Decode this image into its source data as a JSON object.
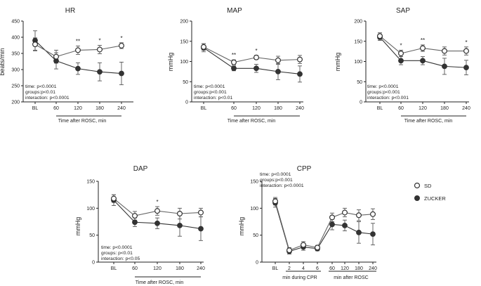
{
  "legend": [
    {
      "name": "SD",
      "style": "open"
    },
    {
      "name": "ZUCKER",
      "style": "filled"
    }
  ],
  "chart_data": [
    {
      "id": "hr",
      "type": "line",
      "title": "HR",
      "ylabel": "beats/min",
      "xlabel": "Time after ROSC, min",
      "categories": [
        "BL",
        "60",
        "120",
        "180",
        "240"
      ],
      "yticks": [
        "200",
        "250",
        "300",
        "350",
        "400",
        "450"
      ],
      "ylim": [
        200,
        450
      ],
      "series": [
        {
          "name": "SD",
          "values": [
            378,
            340,
            360,
            362,
            374
          ],
          "err": [
            20,
            20,
            13,
            13,
            9
          ]
        },
        {
          "name": "ZUCKER",
          "values": [
            390,
            327,
            303,
            293,
            288
          ],
          "err": [
            30,
            25,
            18,
            28,
            35
          ]
        }
      ],
      "significance": [
        "",
        "",
        "**",
        "*",
        "*"
      ],
      "stats": [
        "time: p<0.0001",
        "groups:p<0.01",
        "interaction: p<0.0001"
      ]
    },
    {
      "id": "map",
      "type": "line",
      "title": "MAP",
      "ylabel": "mmHg",
      "xlabel": "Time after ROSC, min",
      "categories": [
        "BL",
        "60",
        "120",
        "180",
        "240"
      ],
      "yticks": [
        "0",
        "50",
        "100",
        "150",
        "200"
      ],
      "ylim": [
        0,
        200
      ],
      "series": [
        {
          "name": "SD",
          "values": [
            136,
            98,
            110,
            103,
            105
          ],
          "err": [
            8,
            6,
            5,
            10,
            10
          ]
        },
        {
          "name": "ZUCKER",
          "values": [
            134,
            83,
            83,
            75,
            69
          ],
          "err": [
            10,
            6,
            10,
            20,
            20
          ]
        }
      ],
      "significance": [
        "",
        "**",
        "*",
        "",
        ""
      ],
      "stats": [
        "time: p<0.0001",
        "groups:p<0.001",
        "interaction: p<0.01"
      ]
    },
    {
      "id": "sap",
      "type": "line",
      "title": "SAP",
      "ylabel": "mmHg",
      "xlabel": "Time after ROSC, min",
      "categories": [
        "BL",
        "60",
        "120",
        "180",
        "240"
      ],
      "yticks": [
        "0",
        "50",
        "100",
        "150",
        "200"
      ],
      "ylim": [
        0,
        200
      ],
      "series": [
        {
          "name": "SD",
          "values": [
            163,
            120,
            133,
            126,
            126
          ],
          "err": [
            8,
            8,
            8,
            10,
            10
          ]
        },
        {
          "name": "ZUCKER",
          "values": [
            160,
            102,
            102,
            88,
            85
          ],
          "err": [
            8,
            10,
            10,
            20,
            18
          ]
        }
      ],
      "significance": [
        "",
        "*",
        "**",
        "",
        "*"
      ],
      "stats": [
        "time: p<0.0001",
        "groups:p<0.001",
        "interaction: p<0.001"
      ]
    },
    {
      "id": "dap",
      "type": "line",
      "title": "DAP",
      "ylabel": "mmHg",
      "xlabel": "Time after ROSC, min",
      "categories": [
        "BL",
        "60",
        "120",
        "180",
        "240"
      ],
      "yticks": [
        "0",
        "50",
        "100",
        "150"
      ],
      "ylim": [
        0,
        150
      ],
      "series": [
        {
          "name": "SD",
          "values": [
            118,
            86,
            95,
            90,
            92
          ],
          "err": [
            7,
            8,
            8,
            10,
            8
          ]
        },
        {
          "name": "ZUCKER",
          "values": [
            115,
            74,
            72,
            68,
            62
          ],
          "err": [
            10,
            8,
            10,
            20,
            22
          ]
        }
      ],
      "significance": [
        "",
        "",
        "*",
        "",
        ""
      ],
      "stats": [
        "time: p<0.0001",
        "groups: p<0.01",
        "interaction: p<0.05"
      ]
    },
    {
      "id": "cpp",
      "type": "line",
      "title": "CPP",
      "ylabel": "mmHg",
      "xlabel_groups": [
        "min during CPR",
        "min after ROSC"
      ],
      "categories": [
        "BL",
        "2",
        "4",
        "6",
        "60",
        "120",
        "180",
        "240"
      ],
      "yticks": [
        "0",
        "50",
        "100",
        "150"
      ],
      "ylim": [
        0,
        150
      ],
      "series": [
        {
          "name": "SD",
          "values": [
            113,
            22,
            32,
            27,
            83,
            92,
            87,
            89
          ],
          "err": [
            7,
            5,
            6,
            4,
            8,
            8,
            10,
            10
          ]
        },
        {
          "name": "ZUCKER",
          "values": [
            110,
            20,
            28,
            25,
            70,
            68,
            55,
            52
          ],
          "err": [
            8,
            5,
            6,
            4,
            10,
            10,
            20,
            20
          ]
        }
      ],
      "significance": [
        "",
        "",
        "",
        "",
        "",
        "",
        "",
        ""
      ],
      "stats": [
        "time: p<0.0001",
        "groups:p<0.001",
        "interaction: p<0.0001"
      ]
    }
  ]
}
